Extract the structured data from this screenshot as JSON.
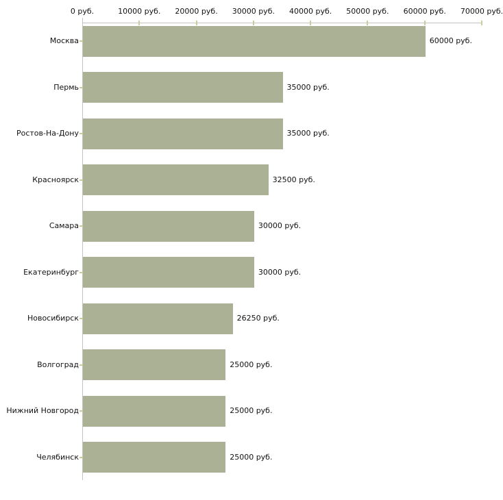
{
  "chart_data": {
    "type": "bar",
    "orientation": "horizontal",
    "title": "",
    "xlabel": "",
    "ylabel": "",
    "unit": "руб.",
    "categories": [
      "Москва",
      "Пермь",
      "Ростов-На-Дону",
      "Красноярск",
      "Самара",
      "Екатеринбург",
      "Новосибирск",
      "Волгоград",
      "Нижний Новгород",
      "Челябинск"
    ],
    "values": [
      60000,
      35000,
      35000,
      32500,
      30000,
      30000,
      26250,
      25000,
      25000,
      25000
    ],
    "value_labels": [
      "60000 руб.",
      "35000 руб.",
      "35000 руб.",
      "32500 руб.",
      "30000 руб.",
      "30000 руб.",
      "26250 руб.",
      "25000 руб.",
      "25000 руб.",
      "25000 руб."
    ],
    "xlim": [
      0,
      70000
    ],
    "x_ticks": [
      0,
      10000,
      20000,
      30000,
      40000,
      50000,
      60000,
      70000
    ],
    "x_tick_labels": [
      "0 руб.",
      "10000 руб.",
      "20000 руб.",
      "30000 руб.",
      "40000 руб.",
      "50000 руб.",
      "60000 руб.",
      "70000 руб."
    ],
    "legend": null,
    "grid": false,
    "colors": {
      "bar": "#abb194",
      "axis_line": "#c3c3c3",
      "tick_mark": "#cbcb9e",
      "text": "#111111",
      "background": "#ffffff"
    }
  }
}
